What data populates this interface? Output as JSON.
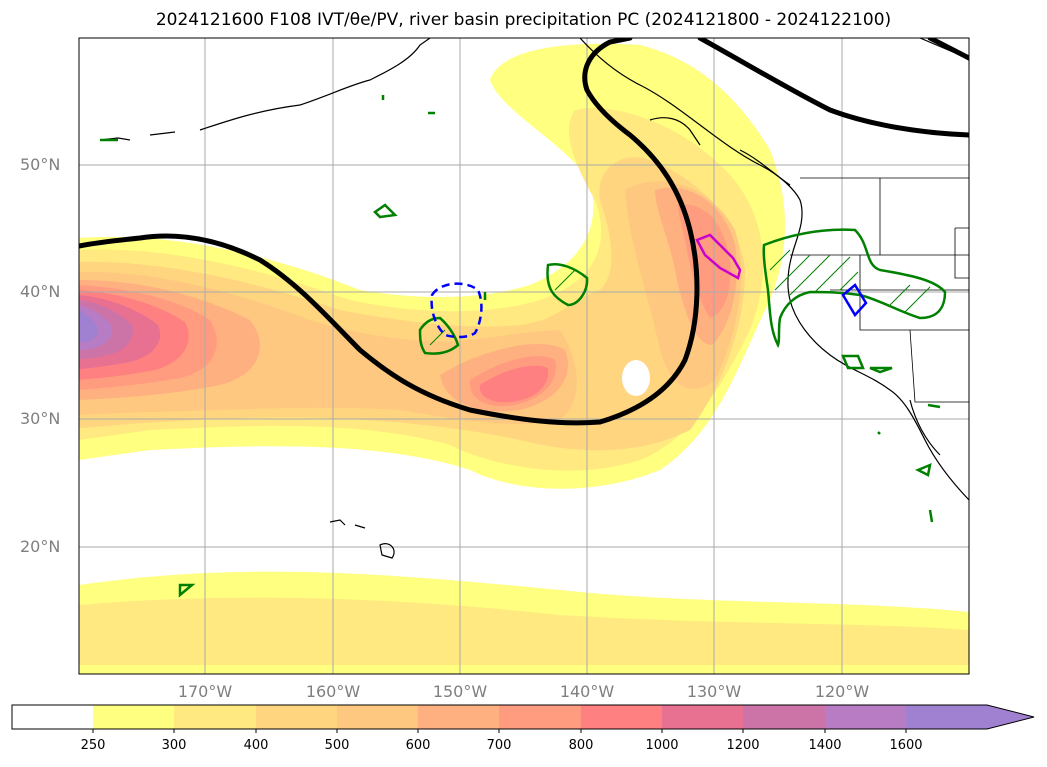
{
  "title": "2024121600 F108 IVT/θe/PV, river basin precipitation PC (2024121800 - 2024122100)",
  "map": {
    "lat_labels": [
      "50°N",
      "40°N",
      "30°N",
      "20°N"
    ],
    "lon_labels": [
      "170°W",
      "160°W",
      "150°W",
      "140°W",
      "130°W",
      "120°W"
    ],
    "extent": {
      "lon_min": -180,
      "lon_max": -110,
      "lat_min": 10,
      "lat_max": 60
    }
  },
  "colorbar": {
    "levels": [
      "250",
      "300",
      "400",
      "500",
      "600",
      "700",
      "800",
      "1000",
      "1200",
      "1400",
      "1600"
    ],
    "colors": [
      "#ffffff",
      "#ffff80",
      "#ffe980",
      "#ffd580",
      "#ffc880",
      "#ffb080",
      "#ff9c80",
      "#ff8080",
      "#e87090",
      "#cc74a8",
      "#b87cc4",
      "#a080d0"
    ],
    "extend": "max"
  },
  "colors": {
    "pv_contour": "#000000",
    "green_region": "#008000",
    "blue_region": "#0000ff",
    "magenta_region": "#cc00cc"
  }
}
